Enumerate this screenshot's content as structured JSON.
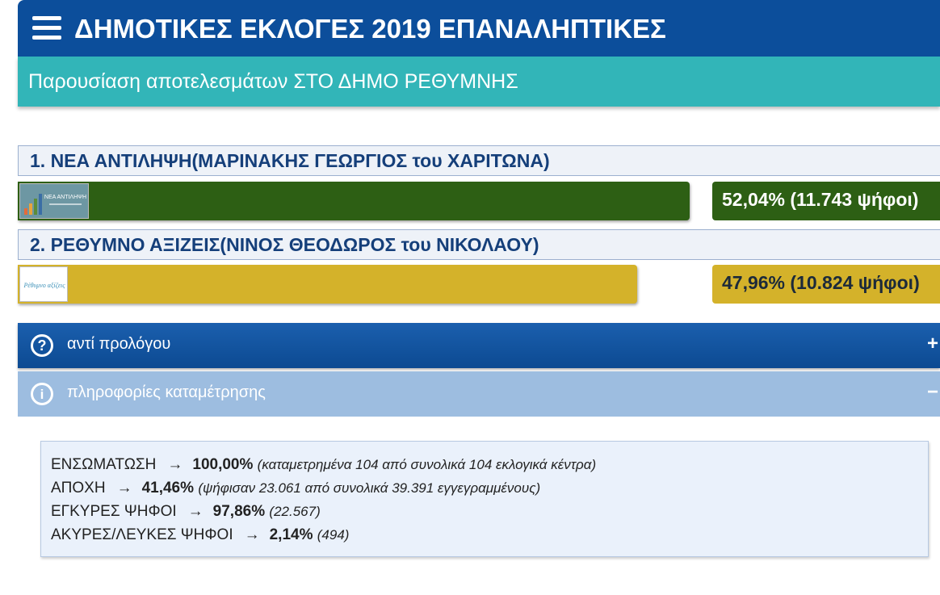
{
  "header": {
    "title": "ΔΗΜΟΤΙΚΕΣ ΕΚΛΟΓΕΣ 2019 ΕΠΑΝΑΛΗΠΤΙΚΕΣ"
  },
  "subheader": {
    "title": "Παρουσίαση αποτελεσμάτων ΣΤΟ ΔΗΜΟ ΡΕΘΥΜΝΗΣ"
  },
  "results": [
    {
      "name": "1. ΝΕΑ ΑΝΤΙΛΗΨΗ(ΜΑΡΙΝΑΚΗΣ ΓΕΩΡΓΙΟΣ του ΧΑΡΙΤΩΝΑ)",
      "share": "52,04% (11.743 ψήφοι)",
      "percent": 52.04,
      "color": "#2d5f14",
      "logo_text": "ΝΕΑ ΑΝΤΙΛΗΨΗ"
    },
    {
      "name": "2. ΡΕΘΥΜΝΟ ΑΞΙΖΕΙΣ(ΝΙΝΟΣ ΘΕΟΔΩΡΟΣ του ΝΙΚΟΛΑΟΥ)",
      "share": "47,96% (10.824 ψήφοι)",
      "percent": 47.96,
      "color": "#d4b22a",
      "logo_text": "Ρέθυμνο αξίζεις"
    }
  ],
  "accordion": [
    {
      "label": "αντί προλόγου",
      "toggle": "+",
      "icon": "question-icon",
      "expanded": false
    },
    {
      "label": "πληροφορίες καταμέτρησης",
      "toggle": "−",
      "icon": "info-icon",
      "expanded": true
    }
  ],
  "counting": [
    {
      "label": "ΕΝΣΩΜΑΤΩΣΗ",
      "arrow": "→",
      "value": "100,00%",
      "detail": "(καταμετρημένα 104 από συνολικά 104 εκλογικά κέντρα)"
    },
    {
      "label": "ΑΠΟΧΗ",
      "arrow": "→",
      "value": "41,46%",
      "detail": "(ψήφισαν 23.061 από συνολικά 39.391 εγγεγραμμένους)"
    },
    {
      "label": "ΕΓΚΥΡΕΣ ΨΗΦΟΙ",
      "arrow": "→",
      "value": "97,86%",
      "detail": "(22.567)"
    },
    {
      "label": "ΑΚΥΡΕΣ/ΛΕΥΚΕΣ ΨΗΦΟΙ",
      "arrow": "→",
      "value": "2,14%",
      "detail": "(494)"
    }
  ]
}
